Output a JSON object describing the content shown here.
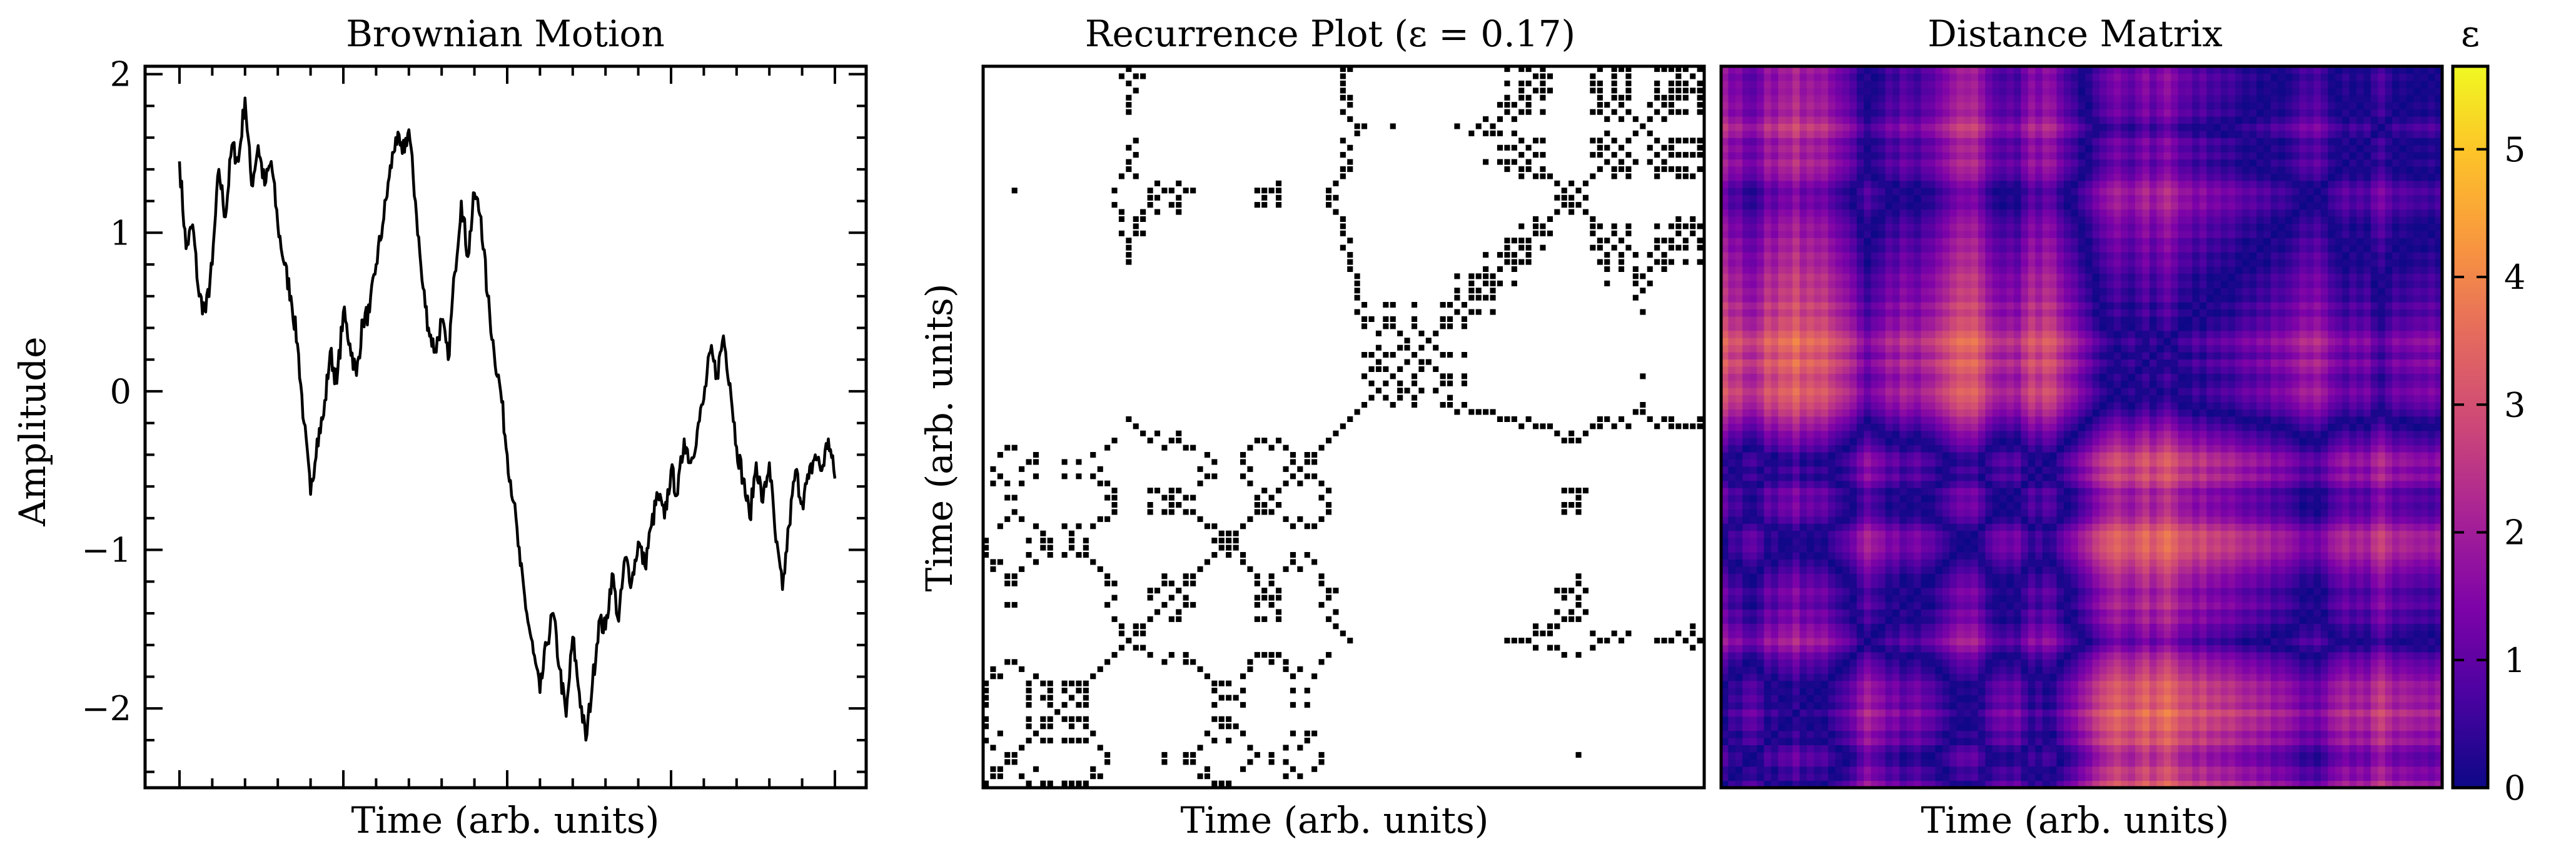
{
  "chart_data": [
    {
      "type": "line",
      "title": "Brownian Motion",
      "xlabel": "Time (arb. units)",
      "ylabel": "Amplitude",
      "ylim": [
        -2.5,
        2.05
      ],
      "yticks": [
        -2,
        -1,
        0,
        1,
        2
      ],
      "ytick_labels": [
        "−2",
        "−1",
        "0",
        "1",
        "2"
      ],
      "x_tick_labels_shown": false,
      "line_color": "#000000",
      "series": [
        {
          "x": [
            0,
            1,
            2,
            3,
            4,
            5,
            6,
            7,
            8,
            9,
            10,
            11,
            12,
            13,
            14,
            15,
            16,
            17,
            18,
            19,
            20,
            21,
            22,
            23,
            24,
            25,
            26,
            27,
            28,
            29,
            30,
            31,
            32,
            33,
            34,
            35,
            36,
            37,
            38,
            39,
            40,
            41,
            42,
            43,
            44,
            45,
            46,
            47,
            48,
            49,
            50,
            51,
            52,
            53,
            54,
            55,
            56,
            57,
            58,
            59,
            60,
            61,
            62,
            63,
            64,
            65,
            66,
            67,
            68,
            69,
            70,
            71,
            72,
            73,
            74,
            75,
            76,
            77,
            78,
            79,
            80,
            81,
            82,
            83,
            84,
            85,
            86,
            87,
            88,
            89,
            90,
            91,
            92,
            93,
            94,
            95,
            96,
            97,
            98,
            99,
            100
          ],
          "values": [
            1.45,
            0.9,
            1.05,
            0.6,
            0.5,
            0.8,
            1.4,
            1.1,
            1.55,
            1.45,
            1.85,
            1.3,
            1.55,
            1.3,
            1.45,
            1.05,
            0.8,
            0.6,
            0.3,
            -0.2,
            -0.65,
            -0.3,
            -0.15,
            0.25,
            0.05,
            0.5,
            0.3,
            0.1,
            0.45,
            0.5,
            0.8,
            1.05,
            1.35,
            1.6,
            1.5,
            1.65,
            1.2,
            0.7,
            0.4,
            0.25,
            0.45,
            0.2,
            0.75,
            1.2,
            0.85,
            1.25,
            1.1,
            0.6,
            0.25,
            0.0,
            -0.4,
            -0.7,
            -1.1,
            -1.4,
            -1.65,
            -1.9,
            -1.6,
            -1.4,
            -1.75,
            -2.05,
            -1.55,
            -1.9,
            -2.2,
            -1.85,
            -1.45,
            -1.5,
            -1.15,
            -1.45,
            -1.05,
            -1.2,
            -0.95,
            -1.1,
            -0.85,
            -0.65,
            -0.8,
            -0.5,
            -0.65,
            -0.3,
            -0.45,
            -0.25,
            -0.05,
            0.25,
            0.1,
            0.35,
            0.05,
            -0.35,
            -0.55,
            -0.8,
            -0.45,
            -0.7,
            -0.45,
            -0.95,
            -1.25,
            -0.85,
            -0.5,
            -0.7,
            -0.55,
            -0.4,
            -0.5,
            -0.3,
            -0.55
          ]
        }
      ]
    },
    {
      "type": "heatmap",
      "title": "Recurrence Plot (ε = 0.17)",
      "xlabel": "Time (arb. units)",
      "ylabel": "Time (arb. units)",
      "threshold": 0.17,
      "colors": {
        "recurrent": "#000000",
        "background": "#ffffff"
      }
    },
    {
      "type": "heatmap",
      "title": "Distance Matrix",
      "xlabel": "Time (arb. units)",
      "ylabel": "",
      "colormap": "plasma",
      "colors": {
        "low": "#0d0887",
        "mid_low": "#7e03a8",
        "mid": "#cc4778",
        "mid_high": "#f89540",
        "high": "#f0f921"
      },
      "colorbar": {
        "label": "ε",
        "ticks": [
          0,
          1,
          2,
          3,
          4,
          5
        ],
        "tick_labels": [
          "0",
          "1",
          "2",
          "3",
          "4",
          "5"
        ],
        "range": [
          0,
          5.65
        ]
      }
    }
  ]
}
